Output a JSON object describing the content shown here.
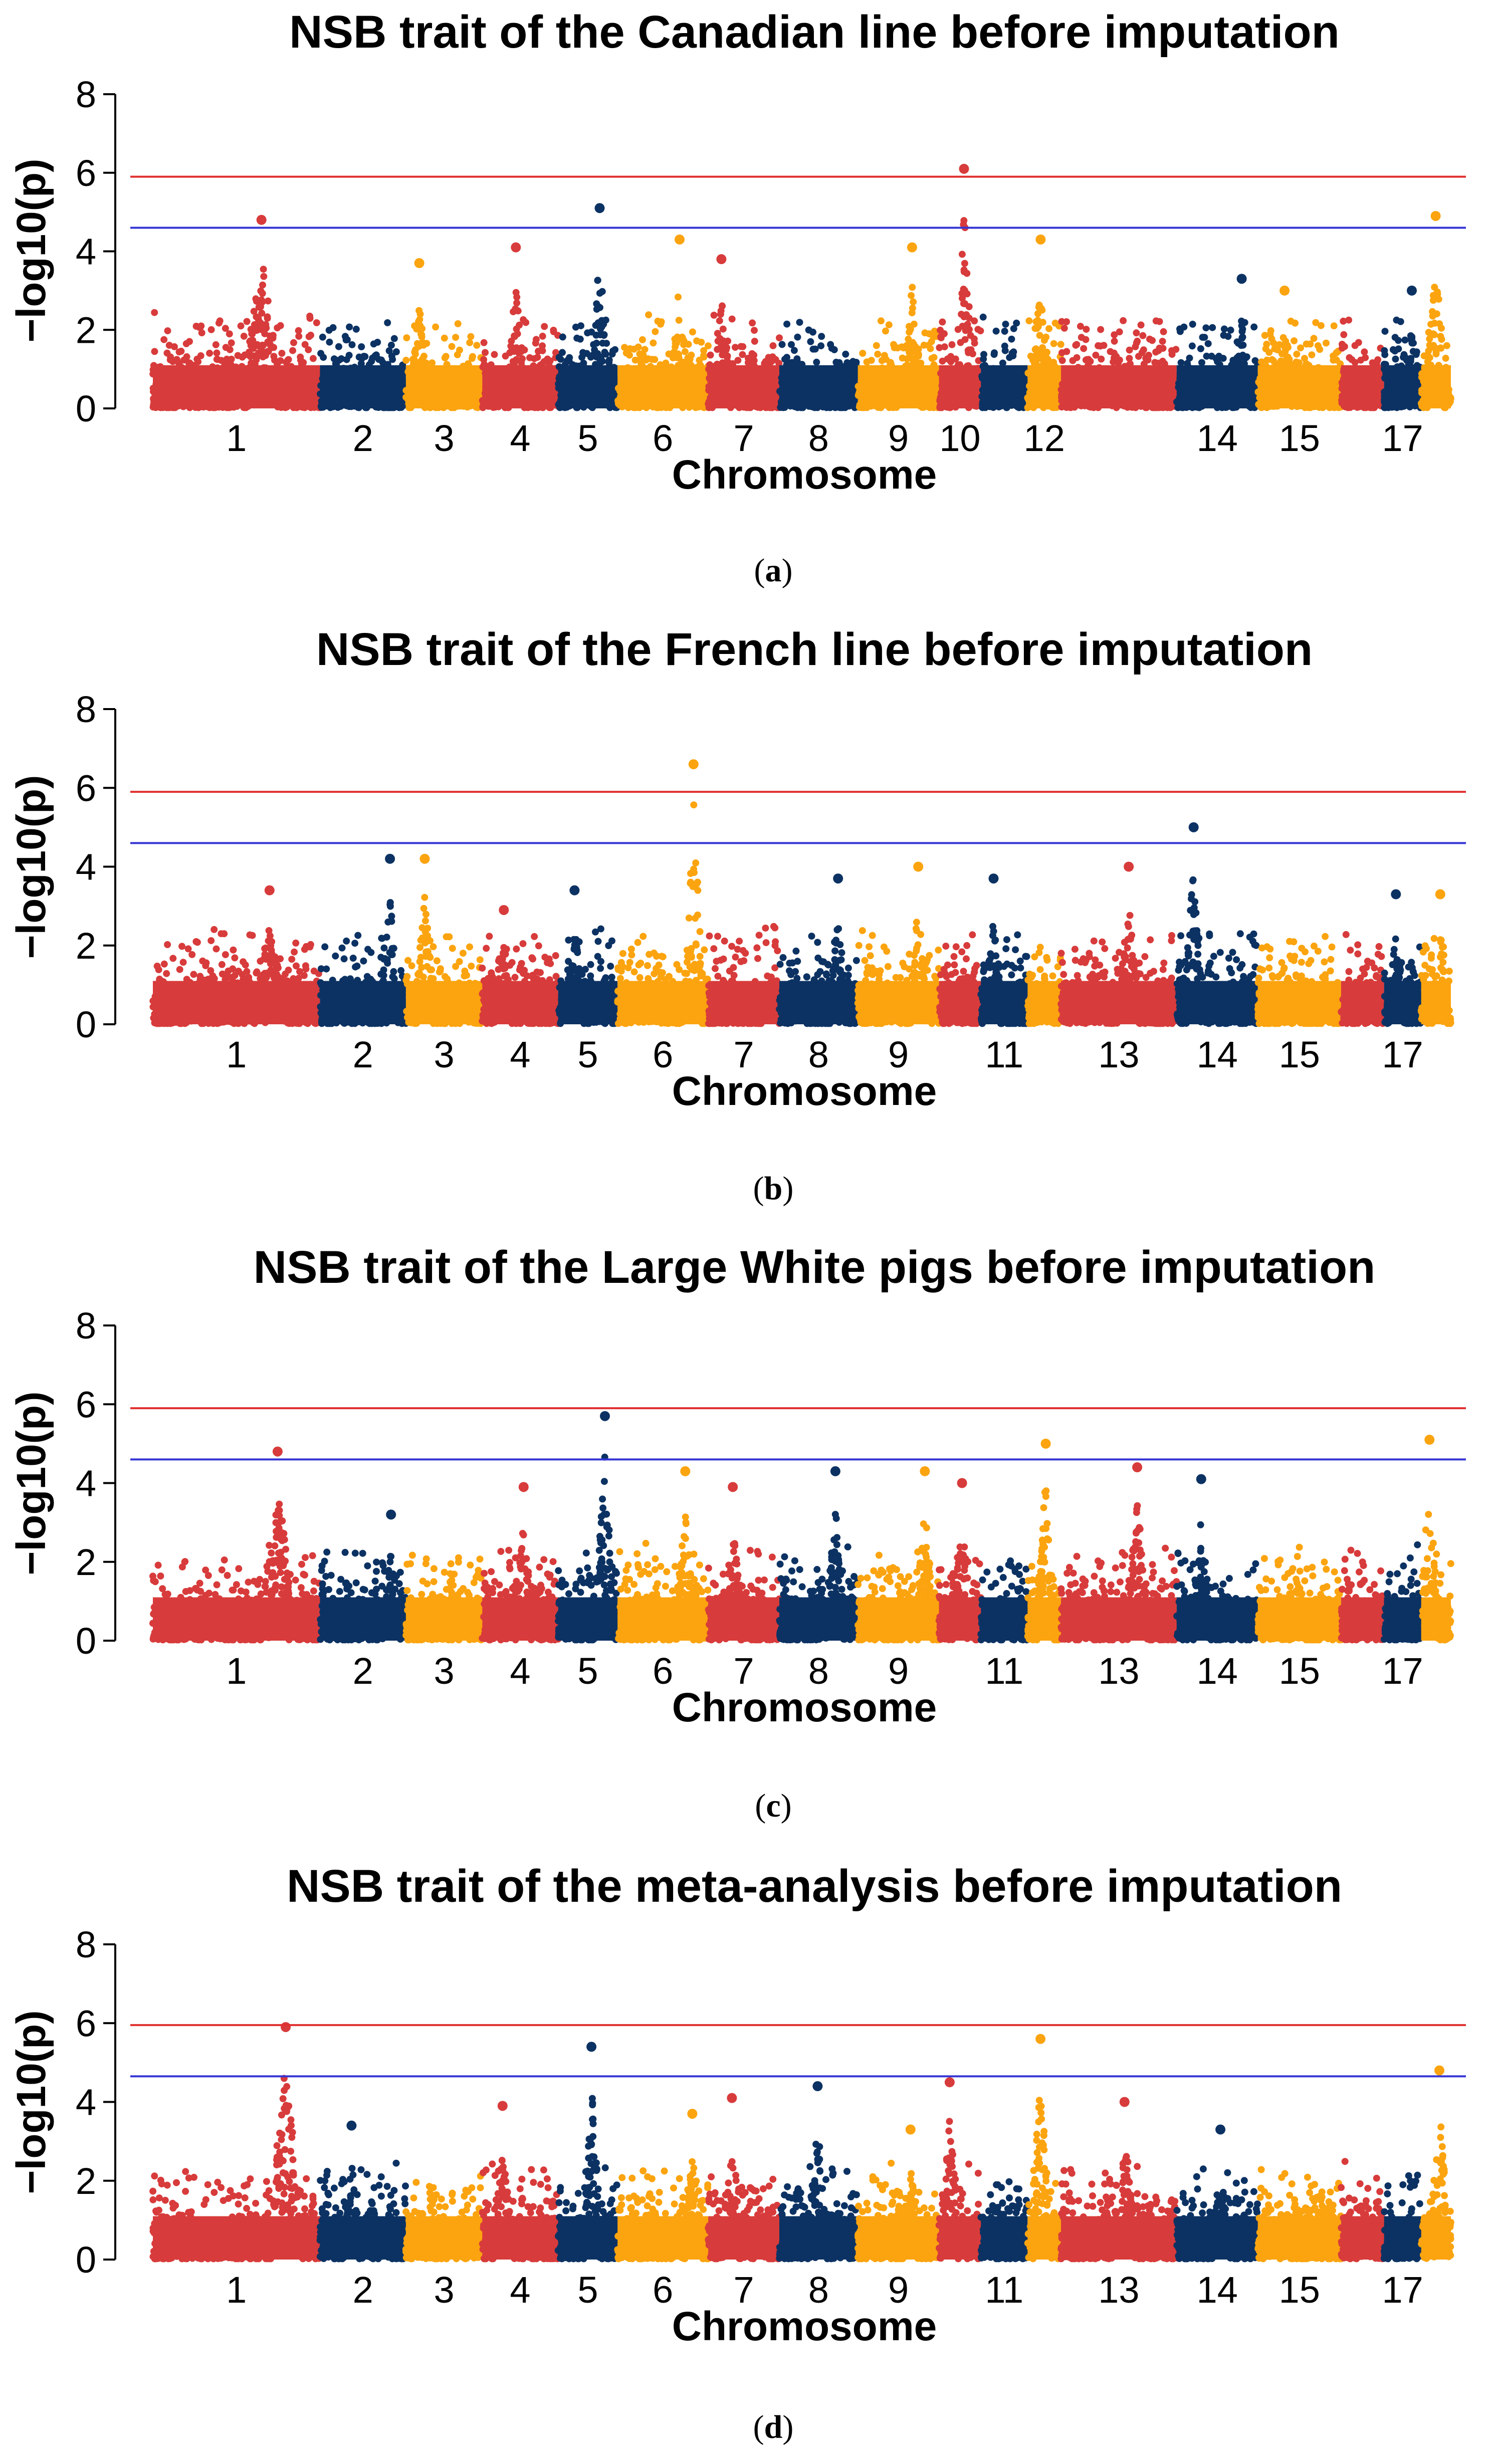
{
  "colors": {
    "red": "#d83b3b",
    "navy": "#0c3263",
    "orange": "#fba40f",
    "genome_wide_line": "#e03030",
    "suggestive_line": "#3535d5"
  },
  "chart_data": [
    {
      "panel": "(a)",
      "type": "scatter",
      "title": "NSB trait of the Canadian line before imputation",
      "xlabel": "Chromosome",
      "ylabel": "−log10(p)",
      "ylim": [
        0,
        8
      ],
      "yticks": [
        "0",
        "2",
        "4",
        "6",
        "8"
      ],
      "chromosome_labels": [
        "1",
        "2",
        "3",
        "4",
        "5",
        "6",
        "7",
        "8",
        "9",
        "10",
        "12",
        "14",
        "15",
        "17"
      ],
      "thresholds": [
        {
          "name": "genome-wide",
          "value": 5.9,
          "color": "#e03030"
        },
        {
          "name": "suggestive",
          "value": 4.6,
          "color": "#3535d5"
        }
      ],
      "peaks": [
        {
          "chromosome": "1",
          "value": 4.8
        },
        {
          "chromosome": "3",
          "value": 3.7
        },
        {
          "chromosome": "4",
          "value": 4.1
        },
        {
          "chromosome": "5",
          "value": 5.1
        },
        {
          "chromosome": "6",
          "value": 4.3
        },
        {
          "chromosome": "7",
          "value": 3.8
        },
        {
          "chromosome": "9",
          "value": 4.1
        },
        {
          "chromosome": "10",
          "value": 6.1
        },
        {
          "chromosome": "12",
          "value": 4.3
        },
        {
          "chromosome": "14",
          "value": 3.3
        },
        {
          "chromosome": "15",
          "value": 3.0
        },
        {
          "chromosome": "17",
          "value": 3.0
        },
        {
          "chromosome": "18",
          "value": 4.9
        }
      ]
    },
    {
      "panel": "(b)",
      "type": "scatter",
      "title": "NSB trait of the French line before imputation",
      "xlabel": "Chromosome",
      "ylabel": "−log10(p)",
      "ylim": [
        0,
        8
      ],
      "yticks": [
        "0",
        "2",
        "4",
        "6",
        "8"
      ],
      "chromosome_labels": [
        "1",
        "2",
        "3",
        "4",
        "5",
        "6",
        "7",
        "8",
        "9",
        "11",
        "13",
        "14",
        "15",
        "17"
      ],
      "thresholds": [
        {
          "name": "genome-wide",
          "value": 5.9,
          "color": "#e03030"
        },
        {
          "name": "suggestive",
          "value": 4.6,
          "color": "#3535d5"
        }
      ],
      "peaks": [
        {
          "chromosome": "1",
          "value": 3.4
        },
        {
          "chromosome": "2",
          "value": 4.2
        },
        {
          "chromosome": "3",
          "value": 4.2
        },
        {
          "chromosome": "4",
          "value": 2.9
        },
        {
          "chromosome": "5",
          "value": 3.4
        },
        {
          "chromosome": "6",
          "value": 6.6
        },
        {
          "chromosome": "8",
          "value": 3.7
        },
        {
          "chromosome": "9",
          "value": 4.0
        },
        {
          "chromosome": "11",
          "value": 3.7
        },
        {
          "chromosome": "13",
          "value": 4.0
        },
        {
          "chromosome": "14",
          "value": 5.0
        },
        {
          "chromosome": "17",
          "value": 3.3
        },
        {
          "chromosome": "18",
          "value": 3.3
        }
      ]
    },
    {
      "panel": "(c)",
      "type": "scatter",
      "title": "NSB trait of the Large White pigs before imputation",
      "xlabel": "Chromosome",
      "ylabel": "−log10(p)",
      "ylim": [
        0,
        8
      ],
      "yticks": [
        "0",
        "2",
        "4",
        "6",
        "8"
      ],
      "chromosome_labels": [
        "1",
        "2",
        "3",
        "4",
        "5",
        "6",
        "7",
        "8",
        "9",
        "11",
        "13",
        "14",
        "15",
        "17"
      ],
      "thresholds": [
        {
          "name": "genome-wide",
          "value": 5.9,
          "color": "#e03030"
        },
        {
          "name": "suggestive",
          "value": 4.6,
          "color": "#3535d5"
        }
      ],
      "peaks": [
        {
          "chromosome": "1",
          "value": 4.8
        },
        {
          "chromosome": "2",
          "value": 3.2
        },
        {
          "chromosome": "4",
          "value": 3.9
        },
        {
          "chromosome": "5",
          "value": 5.7
        },
        {
          "chromosome": "6",
          "value": 4.3
        },
        {
          "chromosome": "7",
          "value": 3.9
        },
        {
          "chromosome": "8",
          "value": 4.3
        },
        {
          "chromosome": "9",
          "value": 4.3
        },
        {
          "chromosome": "10",
          "value": 4.0
        },
        {
          "chromosome": "12",
          "value": 5.0
        },
        {
          "chromosome": "13",
          "value": 4.4
        },
        {
          "chromosome": "14",
          "value": 4.1
        },
        {
          "chromosome": "18",
          "value": 5.1
        }
      ]
    },
    {
      "panel": "(d)",
      "type": "scatter",
      "title": "NSB trait of the meta-analysis before imputation",
      "xlabel": "Chromosome",
      "ylabel": "−log10(p)",
      "ylim": [
        0,
        8
      ],
      "yticks": [
        "0",
        "2",
        "4",
        "6",
        "8"
      ],
      "chromosome_labels": [
        "1",
        "2",
        "3",
        "4",
        "5",
        "6",
        "7",
        "8",
        "9",
        "11",
        "13",
        "14",
        "15",
        "17"
      ],
      "thresholds": [
        {
          "name": "genome-wide",
          "value": 5.95,
          "color": "#e03030"
        },
        {
          "name": "suggestive",
          "value": 4.65,
          "color": "#3535d5"
        }
      ],
      "peaks": [
        {
          "chromosome": "1",
          "value": 5.9
        },
        {
          "chromosome": "2",
          "value": 3.4
        },
        {
          "chromosome": "4",
          "value": 3.9
        },
        {
          "chromosome": "5",
          "value": 5.4
        },
        {
          "chromosome": "6",
          "value": 3.7
        },
        {
          "chromosome": "7",
          "value": 4.1
        },
        {
          "chromosome": "8",
          "value": 4.4
        },
        {
          "chromosome": "9",
          "value": 3.3
        },
        {
          "chromosome": "10",
          "value": 4.5
        },
        {
          "chromosome": "12",
          "value": 5.6
        },
        {
          "chromosome": "13",
          "value": 4.0
        },
        {
          "chromosome": "14",
          "value": 3.3
        },
        {
          "chromosome": "18",
          "value": 4.8
        }
      ]
    }
  ]
}
